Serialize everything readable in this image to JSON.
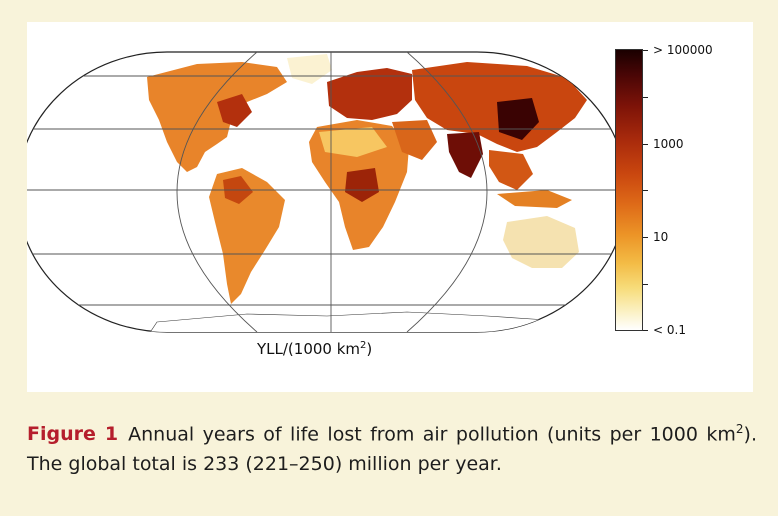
{
  "figure": {
    "map_label_prefix": "YLL/(1000 km",
    "map_label_exp": "2",
    "map_label_suffix": ")",
    "legend": {
      "labels": [
        "> 100000",
        "1000",
        "10",
        "< 0.1"
      ],
      "gradient_colors": [
        "#1a0000",
        "#7d1308",
        "#c9460f",
        "#ec9427",
        "#f7dc7a",
        "#ffffff"
      ]
    },
    "colors": {
      "land_low": "#f7c661",
      "land_mid": "#e8842a",
      "land_high": "#b3300d",
      "land_peak": "#3a0303",
      "graticule": "#555555",
      "caption_accent": "#b51e2c",
      "background": "#f8f3da"
    }
  },
  "caption": {
    "label": "Figure 1",
    "text_1": "Annual years of life lost from air pollution (units per 1000 km",
    "exp": "2",
    "text_2": "). The global total is 233 (221–250) million per year."
  }
}
